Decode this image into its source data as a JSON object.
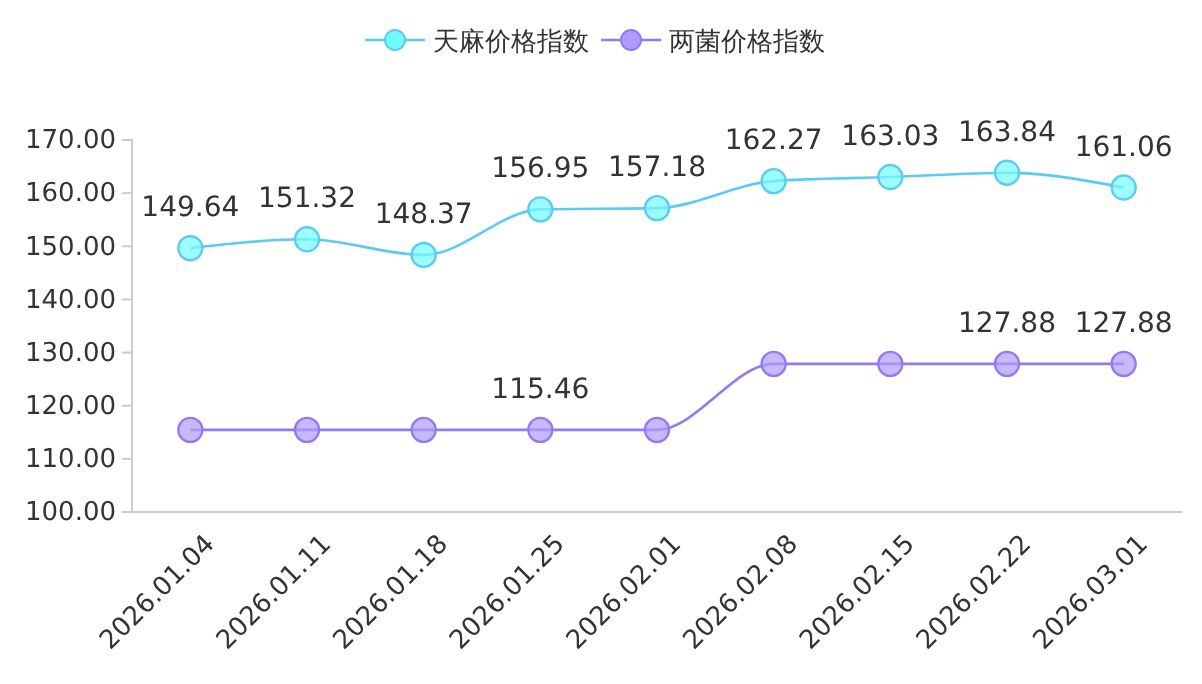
{
  "chart_data": {
    "type": "line",
    "categories": [
      "2026.01.04",
      "2026.01.11",
      "2026.01.18",
      "2026.01.25",
      "2026.02.01",
      "2026.02.08",
      "2026.02.15",
      "2026.02.22",
      "2026.03.01"
    ],
    "series": [
      {
        "name": "天麻价格指数",
        "color": "#5ccbf4",
        "values": [
          149.64,
          151.32,
          148.37,
          156.95,
          157.18,
          162.27,
          163.03,
          163.84,
          161.06
        ],
        "value_labels": [
          "149.64",
          "151.32",
          "148.37",
          "156.95",
          "157.18",
          "162.27",
          "163.03",
          "163.84",
          "161.06"
        ]
      },
      {
        "name": "两菌价格指数",
        "color": "#8f7cf5",
        "values": [
          115.46,
          115.46,
          115.46,
          115.46,
          115.46,
          127.88,
          127.88,
          127.88,
          127.88
        ],
        "value_labels": [
          null,
          null,
          null,
          "115.46",
          null,
          null,
          null,
          "127.88",
          "127.88"
        ]
      }
    ],
    "ylim": [
      100,
      170
    ],
    "yticks": [
      {
        "value": 100,
        "label": "100.00"
      },
      {
        "value": 110,
        "label": "110.00"
      },
      {
        "value": 120,
        "label": "120.00"
      },
      {
        "value": 130,
        "label": "130.00"
      },
      {
        "value": 140,
        "label": "140.00"
      },
      {
        "value": 150,
        "label": "150.00"
      },
      {
        "value": 160,
        "label": "160.00"
      },
      {
        "value": 170,
        "label": "170.00"
      }
    ],
    "legend": "top",
    "marker": "circle",
    "line_style": "solid",
    "grid": false
  }
}
